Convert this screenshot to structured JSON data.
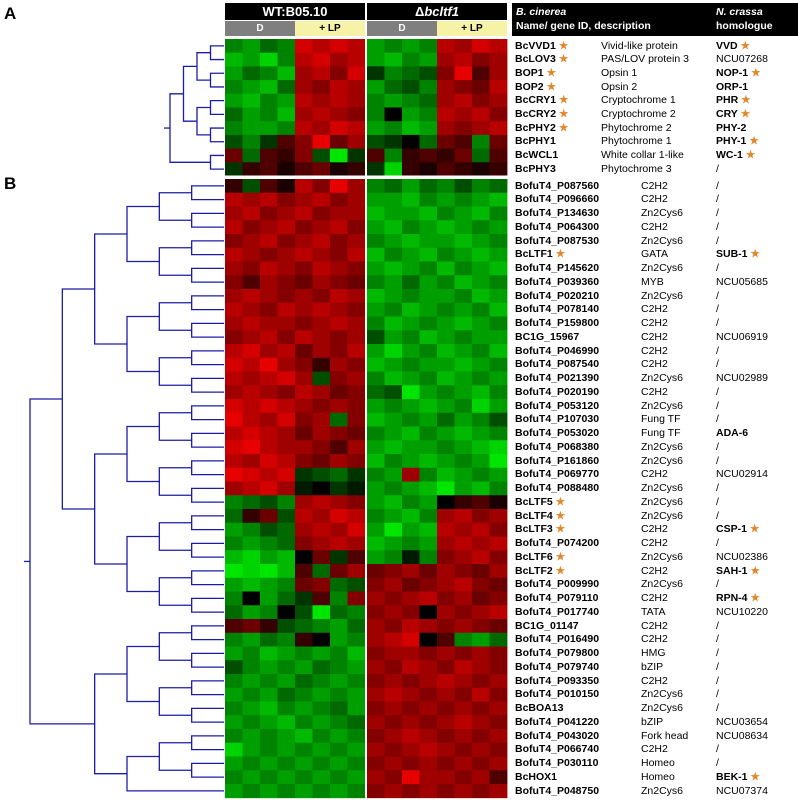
{
  "panels": [
    "A",
    "B"
  ],
  "conditions": {
    "wt": "WT:B05.10",
    "mutant": "bcltf1",
    "delta": "Δ",
    "dark": "D",
    "light": "+ LP"
  },
  "columns": {
    "bcinerea_species": "B. cinerea",
    "bcinerea_sub": "Name/ gene ID, description",
    "ncrassa_species": "N. crassa",
    "ncrassa_sub": "homologue"
  },
  "star_symbol": "★",
  "star_color": "#e0872a",
  "dendrogram_color": "#1c1ca8",
  "heatmap_colors": {
    "low": "#00e600",
    "mid": "#000000",
    "high": "#e60000"
  },
  "panel_a_rows": [
    {
      "gene": "BcVVD1",
      "star": true,
      "desc": "Vivid-like protein",
      "hom": "VVD",
      "hom_bold": true,
      "hom_star": true
    },
    {
      "gene": "BcLOV3",
      "star": true,
      "desc": "PAS/LOV protein 3",
      "hom": "NCU07268",
      "hom_bold": false,
      "hom_star": false
    },
    {
      "gene": "BOP1",
      "star": true,
      "desc": "Opsin 1",
      "hom": "NOP-1",
      "hom_bold": true,
      "hom_star": true
    },
    {
      "gene": "BOP2",
      "star": true,
      "desc": "Opsin 2",
      "hom": "ORP-1",
      "hom_bold": true,
      "hom_star": false
    },
    {
      "gene": "BcCRY1",
      "star": true,
      "desc": "Cryptochrome 1",
      "hom": "PHR",
      "hom_bold": true,
      "hom_star": true
    },
    {
      "gene": "BcCRY2",
      "star": true,
      "desc": "Cryptochrome 2",
      "hom": "CRY",
      "hom_bold": true,
      "hom_star": true
    },
    {
      "gene": "BcPHY2",
      "star": true,
      "desc": "Phytochrome 2",
      "hom": "PHY-2",
      "hom_bold": true,
      "hom_star": false
    },
    {
      "gene": "BcPHY1",
      "star": false,
      "desc": "Phytochrome 1",
      "hom": "PHY-1",
      "hom_bold": true,
      "hom_star": true
    },
    {
      "gene": "BcWCL1",
      "star": false,
      "desc": "White collar 1-like",
      "hom": "WC-1",
      "hom_bold": true,
      "hom_star": true
    },
    {
      "gene": "BcPHY3",
      "star": false,
      "desc": "Phytochrome 3",
      "hom": "/",
      "hom_bold": false,
      "hom_star": false
    }
  ],
  "panel_b_rows": [
    {
      "gene": "BofuT4_P087560",
      "star": false,
      "desc": "C2H2",
      "hom": "/",
      "hom_bold": false,
      "hom_star": false
    },
    {
      "gene": "BofuT4_P096660",
      "star": false,
      "desc": "C2H2",
      "hom": "/",
      "hom_bold": false,
      "hom_star": false
    },
    {
      "gene": "BofuT4_P134630",
      "star": false,
      "desc": "Zn2Cys6",
      "hom": "/",
      "hom_bold": false,
      "hom_star": false
    },
    {
      "gene": "BofuT4_P064300",
      "star": false,
      "desc": "C2H2",
      "hom": "/",
      "hom_bold": false,
      "hom_star": false
    },
    {
      "gene": "BofuT4_P087530",
      "star": false,
      "desc": "Zn2Cys6",
      "hom": "/",
      "hom_bold": false,
      "hom_star": false
    },
    {
      "gene": "BcLTF1",
      "star": true,
      "desc": "GATA",
      "hom": "SUB-1",
      "hom_bold": true,
      "hom_star": true
    },
    {
      "gene": "BofuT4_P145620",
      "star": false,
      "desc": "Zn2Cys6",
      "hom": "/",
      "hom_bold": false,
      "hom_star": false
    },
    {
      "gene": "BofuT4_P039360",
      "star": false,
      "desc": "MYB",
      "hom": "NCU05685",
      "hom_bold": false,
      "hom_star": false
    },
    {
      "gene": "BofuT4_P020210",
      "star": false,
      "desc": "Zn2Cys6",
      "hom": "/",
      "hom_bold": false,
      "hom_star": false
    },
    {
      "gene": "BofuT4_P078140",
      "star": false,
      "desc": "C2H2",
      "hom": "/",
      "hom_bold": false,
      "hom_star": false
    },
    {
      "gene": "BofuT4_P159800",
      "star": false,
      "desc": "C2H2",
      "hom": "/",
      "hom_bold": false,
      "hom_star": false
    },
    {
      "gene": "BC1G_15967",
      "star": false,
      "desc": "C2H2",
      "hom": "NCU06919",
      "hom_bold": false,
      "hom_star": false
    },
    {
      "gene": "BofuT4_P046990",
      "star": false,
      "desc": "C2H2",
      "hom": "/",
      "hom_bold": false,
      "hom_star": false
    },
    {
      "gene": "BofuT4_P087540",
      "star": false,
      "desc": "C2H2",
      "hom": "/",
      "hom_bold": false,
      "hom_star": false
    },
    {
      "gene": "BofuT4_P021390",
      "star": false,
      "desc": "Zn2Cys6",
      "hom": "NCU02989",
      "hom_bold": false,
      "hom_star": false
    },
    {
      "gene": "BofuT4_P020190",
      "star": false,
      "desc": "C2H2",
      "hom": "/",
      "hom_bold": false,
      "hom_star": false
    },
    {
      "gene": "BofuT4_P053120",
      "star": false,
      "desc": "Zn2Cys6",
      "hom": "/",
      "hom_bold": false,
      "hom_star": false
    },
    {
      "gene": "BofuT4_P107030",
      "star": false,
      "desc": "Fung TF",
      "hom": "/",
      "hom_bold": false,
      "hom_star": false
    },
    {
      "gene": "BofuT4_P053020",
      "star": false,
      "desc": "Fung TF",
      "hom": "ADA-6",
      "hom_bold": true,
      "hom_star": false
    },
    {
      "gene": "BofuT4_P068380",
      "star": false,
      "desc": "Zn2Cys6",
      "hom": "/",
      "hom_bold": false,
      "hom_star": false
    },
    {
      "gene": "BofuT4_P161860",
      "star": false,
      "desc": "Zn2Cys6",
      "hom": "/",
      "hom_bold": false,
      "hom_star": false
    },
    {
      "gene": "BofuT4_P069770",
      "star": false,
      "desc": "C2H2",
      "hom": "NCU02914",
      "hom_bold": false,
      "hom_star": false
    },
    {
      "gene": "BofuT4_P088480",
      "star": false,
      "desc": "Zn2Cys6",
      "hom": "/",
      "hom_bold": false,
      "hom_star": false
    },
    {
      "gene": "BcLTF5",
      "star": true,
      "desc": "Zn2Cys6",
      "hom": "/",
      "hom_bold": false,
      "hom_star": false
    },
    {
      "gene": "BcLTF4",
      "star": true,
      "desc": "Zn2Cys6",
      "hom": "/",
      "hom_bold": false,
      "hom_star": false
    },
    {
      "gene": "BcLTF3",
      "star": true,
      "desc": "C2H2",
      "hom": "CSP-1",
      "hom_bold": true,
      "hom_star": true
    },
    {
      "gene": "BofuT4_P074200",
      "star": false,
      "desc": "C2H2",
      "hom": "/",
      "hom_bold": false,
      "hom_star": false
    },
    {
      "gene": "BcLTF6",
      "star": true,
      "desc": "Zn2Cys6",
      "hom": "NCU02386",
      "hom_bold": false,
      "hom_star": false
    },
    {
      "gene": "BcLTF2",
      "star": true,
      "desc": "C2H2",
      "hom": "SAH-1",
      "hom_bold": true,
      "hom_star": true
    },
    {
      "gene": "BofuT4_P009990",
      "star": false,
      "desc": "Zn2Cys6",
      "hom": "/",
      "hom_bold": false,
      "hom_star": false
    },
    {
      "gene": "BofuT4_P079110",
      "star": false,
      "desc": "C2H2",
      "hom": "RPN-4",
      "hom_bold": true,
      "hom_star": true
    },
    {
      "gene": "BofuT4_P017740",
      "star": false,
      "desc": "TATA",
      "hom": "NCU10220",
      "hom_bold": false,
      "hom_star": false
    },
    {
      "gene": "BC1G_01147",
      "star": false,
      "desc": "C2H2",
      "hom": "/",
      "hom_bold": false,
      "hom_star": false
    },
    {
      "gene": "BofuT4_P016490",
      "star": false,
      "desc": "C2H2",
      "hom": "/",
      "hom_bold": false,
      "hom_star": false
    },
    {
      "gene": "BofuT4_P079800",
      "star": false,
      "desc": "HMG",
      "hom": "/",
      "hom_bold": false,
      "hom_star": false
    },
    {
      "gene": "BofuT4_P079740",
      "star": false,
      "desc": "bZIP",
      "hom": "/",
      "hom_bold": false,
      "hom_star": false
    },
    {
      "gene": "BofuT4_P093350",
      "star": false,
      "desc": "C2H2",
      "hom": "/",
      "hom_bold": false,
      "hom_star": false
    },
    {
      "gene": "BofuT4_P010150",
      "star": false,
      "desc": "Zn2Cys6",
      "hom": "/",
      "hom_bold": false,
      "hom_star": false
    },
    {
      "gene": "BcBOA13",
      "star": false,
      "desc": "Zn2Cys6",
      "hom": "/",
      "hom_bold": false,
      "hom_star": false
    },
    {
      "gene": "BofuT4_P041220",
      "star": false,
      "desc": "bZIP",
      "hom": "NCU03654",
      "hom_bold": false,
      "hom_star": false
    },
    {
      "gene": "BofuT4_P043020",
      "star": false,
      "desc": "Fork head",
      "hom": "NCU08634",
      "hom_bold": false,
      "hom_star": false
    },
    {
      "gene": "BofuT4_P066740",
      "star": false,
      "desc": "C2H2",
      "hom": "/",
      "hom_bold": false,
      "hom_star": false
    },
    {
      "gene": "BofuT4_P030110",
      "star": false,
      "desc": "Homeo",
      "hom": "/",
      "hom_bold": false,
      "hom_star": false
    },
    {
      "gene": "BcHOX1",
      "star": false,
      "desc": "Homeo",
      "hom": "BEK-1",
      "hom_bold": true,
      "hom_star": true
    },
    {
      "gene": "BofuT4_P048750",
      "star": false,
      "desc": "Zn2Cys6",
      "hom": "NCU07374",
      "hom_bold": false,
      "hom_star": false
    }
  ],
  "heatmap_a": [
    [
      -0.5,
      -0.6,
      -0.4,
      -0.5,
      0.8,
      0.7,
      0.8,
      0.7,
      -0.6,
      -0.5,
      -0.6,
      -0.5,
      0.7,
      0.6,
      0.8,
      0.7
    ],
    [
      -0.7,
      -0.6,
      -0.8,
      -0.5,
      0.7,
      0.8,
      0.6,
      0.7,
      -0.6,
      -0.7,
      -0.5,
      -0.6,
      0.6,
      0.7,
      0.5,
      0.6
    ],
    [
      -0.6,
      -0.4,
      -0.5,
      -0.7,
      0.6,
      0.7,
      0.5,
      0.8,
      -0.2,
      -0.5,
      -0.4,
      -0.3,
      0.5,
      0.9,
      0.3,
      0.6
    ],
    [
      -0.5,
      -0.6,
      -0.7,
      -0.4,
      0.6,
      0.5,
      0.7,
      0.6,
      -0.6,
      -0.4,
      -0.3,
      -0.5,
      0.6,
      0.5,
      0.4,
      0.7
    ],
    [
      -0.6,
      -0.7,
      -0.5,
      -0.6,
      0.7,
      0.6,
      0.7,
      0.6,
      -0.5,
      -0.6,
      -0.5,
      -0.4,
      0.6,
      0.7,
      0.5,
      0.6
    ],
    [
      -0.4,
      -0.6,
      -0.5,
      -0.7,
      0.6,
      0.7,
      0.6,
      0.5,
      -0.5,
      0.0,
      -0.6,
      -0.5,
      0.7,
      0.6,
      0.7,
      0.5
    ],
    [
      -0.5,
      -0.6,
      -0.6,
      -0.5,
      0.7,
      0.6,
      0.8,
      0.7,
      -0.6,
      -0.5,
      -0.7,
      -0.6,
      0.6,
      0.5,
      0.6,
      0.7
    ],
    [
      -0.3,
      -0.5,
      -0.2,
      0.3,
      0.5,
      1.0,
      0.4,
      0.6,
      -0.3,
      -0.2,
      0.0,
      -0.4,
      0.4,
      0.3,
      -0.5,
      0.4
    ],
    [
      0.4,
      -0.4,
      0.3,
      0.2,
      0.5,
      -0.3,
      -1.0,
      -0.2,
      0.3,
      -0.5,
      0.2,
      0.3,
      0.2,
      0.4,
      -0.4,
      0.3
    ],
    [
      -0.2,
      0.2,
      0.3,
      0.1,
      0.3,
      0.4,
      0.1,
      0.2,
      -0.2,
      -0.8,
      0.2,
      0.1,
      0.3,
      0.2,
      0.1,
      0.2
    ]
  ],
  "heatmap_b": [
    [
      0.2,
      -0.3,
      0.3,
      0.1,
      0.7,
      0.5,
      1.0,
      0.6,
      -0.5,
      -0.4,
      -0.6,
      -0.4,
      -0.5,
      -0.3,
      -0.5,
      -0.4
    ],
    [
      0.7,
      0.6,
      0.7,
      0.5,
      0.6,
      0.7,
      0.5,
      0.6,
      -0.6,
      -0.6,
      -0.7,
      -0.5,
      -0.6,
      -0.5,
      -0.6,
      -0.7
    ],
    [
      0.6,
      0.7,
      0.5,
      0.6,
      0.7,
      0.5,
      0.6,
      0.6,
      -0.7,
      -0.6,
      -0.6,
      -0.7,
      -0.5,
      -0.6,
      -0.7,
      -0.5
    ],
    [
      0.7,
      0.5,
      0.6,
      0.7,
      0.5,
      0.6,
      0.7,
      0.5,
      -0.6,
      -0.7,
      -0.5,
      -0.6,
      -0.7,
      -0.6,
      -0.5,
      -0.6
    ],
    [
      0.5,
      0.6,
      0.7,
      0.5,
      0.6,
      0.7,
      0.5,
      0.6,
      -0.5,
      -0.6,
      -0.7,
      -0.6,
      -0.6,
      -0.7,
      -0.6,
      -0.5
    ],
    [
      0.7,
      0.6,
      0.5,
      0.6,
      0.7,
      0.6,
      0.5,
      0.7,
      -0.7,
      -0.5,
      -0.6,
      -0.7,
      -0.5,
      -0.6,
      -0.7,
      -0.6
    ],
    [
      0.6,
      0.5,
      0.7,
      0.6,
      0.5,
      0.7,
      0.6,
      0.5,
      -0.6,
      -0.7,
      -0.6,
      -0.5,
      -0.7,
      -0.5,
      -0.6,
      -0.7
    ],
    [
      0.5,
      0.3,
      0.6,
      0.5,
      0.4,
      0.6,
      0.5,
      0.4,
      -0.5,
      -0.6,
      -0.4,
      -0.6,
      -0.5,
      -0.7,
      -0.6,
      -0.5
    ],
    [
      0.6,
      0.7,
      0.6,
      0.5,
      0.6,
      0.5,
      0.7,
      0.6,
      -0.7,
      -0.6,
      -0.5,
      -0.6,
      -0.6,
      -0.5,
      -0.7,
      -0.6
    ],
    [
      0.7,
      0.6,
      0.5,
      0.7,
      0.6,
      0.7,
      0.6,
      0.5,
      -0.6,
      -0.5,
      -0.7,
      -0.6,
      -0.5,
      -0.6,
      -0.5,
      -0.7
    ],
    [
      0.6,
      0.7,
      0.6,
      0.6,
      0.5,
      0.6,
      0.7,
      0.6,
      -0.5,
      -0.7,
      -0.6,
      -0.5,
      -0.6,
      -0.7,
      -0.6,
      -0.5
    ],
    [
      0.5,
      0.6,
      0.7,
      0.5,
      0.7,
      0.6,
      0.5,
      0.6,
      -0.3,
      -0.6,
      -0.5,
      -0.7,
      -0.6,
      -0.5,
      -0.6,
      -0.6
    ],
    [
      0.7,
      0.8,
      0.6,
      0.7,
      0.4,
      0.6,
      0.5,
      0.7,
      -0.6,
      -0.8,
      -0.6,
      -0.5,
      -0.7,
      -0.6,
      -0.5,
      -0.7
    ],
    [
      0.8,
      0.7,
      0.9,
      0.6,
      0.5,
      0.2,
      0.6,
      0.5,
      -0.7,
      -0.6,
      -0.5,
      -0.6,
      -0.6,
      -0.7,
      -0.6,
      -0.5
    ],
    [
      0.7,
      0.6,
      0.7,
      0.8,
      0.6,
      -0.3,
      0.5,
      0.6,
      -0.5,
      -0.7,
      -0.6,
      -0.5,
      -0.7,
      -0.6,
      -0.5,
      -0.6
    ],
    [
      0.6,
      0.7,
      0.6,
      0.5,
      0.7,
      0.6,
      0.4,
      0.5,
      -0.4,
      -0.3,
      -0.9,
      -0.6,
      -0.5,
      -0.6,
      -0.7,
      -0.5
    ],
    [
      0.8,
      0.7,
      0.8,
      0.7,
      0.6,
      0.5,
      0.6,
      0.5,
      -0.6,
      -0.5,
      -0.6,
      -0.7,
      -0.6,
      -0.5,
      -0.8,
      -0.6
    ],
    [
      0.9,
      0.7,
      0.6,
      0.8,
      0.5,
      0.6,
      -0.4,
      0.5,
      -0.7,
      -0.6,
      -0.5,
      -0.6,
      -0.4,
      -0.6,
      -0.5,
      -0.3
    ],
    [
      0.7,
      0.8,
      0.7,
      0.6,
      0.4,
      0.6,
      0.5,
      0.4,
      -0.5,
      -0.6,
      -0.7,
      -0.5,
      -0.6,
      -0.7,
      -0.6,
      -0.5
    ],
    [
      0.8,
      0.9,
      0.7,
      0.6,
      0.6,
      0.5,
      0.3,
      0.6,
      -0.6,
      -0.7,
      -0.6,
      -0.6,
      -0.5,
      -0.6,
      -0.7,
      -0.8
    ],
    [
      0.7,
      0.6,
      0.8,
      0.7,
      0.5,
      0.4,
      0.6,
      0.5,
      -0.7,
      -0.5,
      -0.6,
      -0.7,
      -0.6,
      -0.5,
      -0.6,
      -0.9
    ],
    [
      0.9,
      0.8,
      0.7,
      0.8,
      -0.2,
      -0.3,
      -0.4,
      -0.2,
      -0.5,
      -0.6,
      0.6,
      -0.5,
      -0.7,
      -0.6,
      -0.5,
      -0.6
    ],
    [
      0.6,
      0.7,
      0.8,
      0.6,
      -0.1,
      0.0,
      -0.2,
      -0.1,
      -0.6,
      -0.5,
      -0.6,
      -0.7,
      -0.9,
      -0.6,
      -0.7,
      -0.5
    ],
    [
      -0.5,
      -0.4,
      -0.3,
      -0.5,
      0.6,
      0.7,
      0.6,
      0.5,
      -0.6,
      -0.7,
      -0.5,
      -0.6,
      0.0,
      0.2,
      0.3,
      0.1
    ],
    [
      -0.4,
      0.2,
      0.4,
      -0.3,
      0.7,
      0.6,
      0.8,
      0.7,
      -0.5,
      -0.6,
      -0.7,
      -0.5,
      0.6,
      0.7,
      0.5,
      0.6
    ],
    [
      -0.6,
      -0.5,
      -0.3,
      -0.4,
      0.6,
      0.7,
      0.6,
      0.8,
      -0.6,
      -0.9,
      -0.6,
      -0.7,
      0.7,
      0.6,
      0.7,
      0.5
    ],
    [
      -0.5,
      -0.6,
      -0.5,
      -0.4,
      0.5,
      0.6,
      0.7,
      0.6,
      -0.7,
      -0.6,
      -0.5,
      -0.6,
      0.6,
      0.7,
      0.6,
      0.7
    ],
    [
      -0.7,
      -0.8,
      -0.6,
      -0.7,
      0.0,
      0.4,
      -0.2,
      0.3,
      -0.6,
      -0.5,
      -0.1,
      -0.5,
      0.5,
      0.6,
      0.7,
      0.5
    ],
    [
      -0.9,
      -0.8,
      -0.9,
      -0.7,
      0.3,
      -0.4,
      0.4,
      0.6,
      0.4,
      0.5,
      0.6,
      0.4,
      0.6,
      0.5,
      0.4,
      0.6
    ],
    [
      -0.6,
      -0.7,
      -0.6,
      -0.5,
      0.4,
      0.5,
      -0.4,
      -0.3,
      0.5,
      0.6,
      0.4,
      0.5,
      0.6,
      0.7,
      0.5,
      0.4
    ],
    [
      -0.5,
      0.0,
      -0.6,
      -0.4,
      -0.2,
      0.3,
      -0.5,
      0.5,
      0.6,
      0.5,
      0.6,
      0.7,
      0.5,
      0.6,
      0.4,
      0.5
    ],
    [
      -0.4,
      -0.6,
      -0.5,
      0.0,
      -0.3,
      -0.9,
      -0.4,
      -0.5,
      0.5,
      0.6,
      0.5,
      0.0,
      0.6,
      0.5,
      0.6,
      0.7
    ],
    [
      0.3,
      0.4,
      0.2,
      -0.3,
      -0.4,
      -0.5,
      -0.6,
      -0.4,
      0.6,
      0.5,
      0.7,
      0.6,
      0.5,
      0.6,
      0.5,
      0.4
    ],
    [
      -0.5,
      -0.6,
      -0.4,
      -0.5,
      0.2,
      0.0,
      -0.6,
      -0.5,
      0.6,
      0.7,
      0.8,
      0.0,
      0.3,
      -0.5,
      -0.6,
      -0.4
    ],
    [
      -0.6,
      -0.5,
      -0.7,
      -0.6,
      -0.5,
      -0.6,
      -0.5,
      -0.7,
      0.5,
      0.6,
      0.6,
      0.5,
      0.6,
      0.5,
      0.6,
      0.5
    ],
    [
      -0.3,
      -0.5,
      -0.6,
      -0.5,
      -0.6,
      -0.4,
      -0.5,
      -0.6,
      0.6,
      0.5,
      0.7,
      0.6,
      0.5,
      0.7,
      0.6,
      0.5
    ],
    [
      -0.5,
      -0.6,
      -0.5,
      -0.6,
      -0.4,
      -0.5,
      -0.6,
      -0.5,
      0.5,
      0.6,
      0.5,
      0.6,
      0.7,
      0.6,
      0.5,
      0.6
    ],
    [
      -0.6,
      -0.5,
      -0.6,
      -0.4,
      -0.5,
      -0.6,
      -0.5,
      -0.6,
      0.6,
      0.7,
      0.6,
      0.5,
      0.6,
      0.5,
      0.7,
      0.5
    ],
    [
      -0.5,
      -0.6,
      -0.7,
      -0.5,
      -0.6,
      -0.5,
      -0.4,
      -0.6,
      0.5,
      0.6,
      0.5,
      0.6,
      0.5,
      0.6,
      0.5,
      0.6
    ],
    [
      -0.6,
      -0.5,
      -0.6,
      -0.7,
      -0.5,
      -0.6,
      -0.5,
      -0.4,
      0.6,
      0.5,
      0.6,
      0.5,
      0.6,
      0.7,
      0.6,
      0.5
    ],
    [
      -0.5,
      -0.6,
      -0.5,
      -0.6,
      -0.7,
      -0.5,
      -0.6,
      -0.5,
      0.5,
      0.6,
      0.7,
      0.6,
      0.5,
      0.6,
      0.5,
      0.6
    ],
    [
      -0.8,
      -0.6,
      -0.5,
      -0.6,
      -0.5,
      -0.6,
      -0.5,
      -0.6,
      0.6,
      0.5,
      0.6,
      0.7,
      0.6,
      0.5,
      0.6,
      0.5
    ],
    [
      -0.6,
      -0.5,
      -0.6,
      -0.5,
      -0.6,
      -0.5,
      -0.6,
      -0.5,
      0.5,
      0.6,
      0.5,
      0.6,
      0.5,
      0.6,
      0.5,
      0.6
    ],
    [
      -0.5,
      -0.6,
      -0.5,
      -0.6,
      -0.5,
      -0.6,
      -0.5,
      -0.6,
      0.6,
      0.5,
      0.9,
      0.6,
      0.6,
      0.5,
      0.6,
      0.3
    ],
    [
      -0.6,
      -0.5,
      -0.6,
      -0.5,
      -0.6,
      -0.5,
      -0.6,
      -0.5,
      0.5,
      0.6,
      0.5,
      0.6,
      0.5,
      0.6,
      0.5,
      0.6
    ]
  ]
}
